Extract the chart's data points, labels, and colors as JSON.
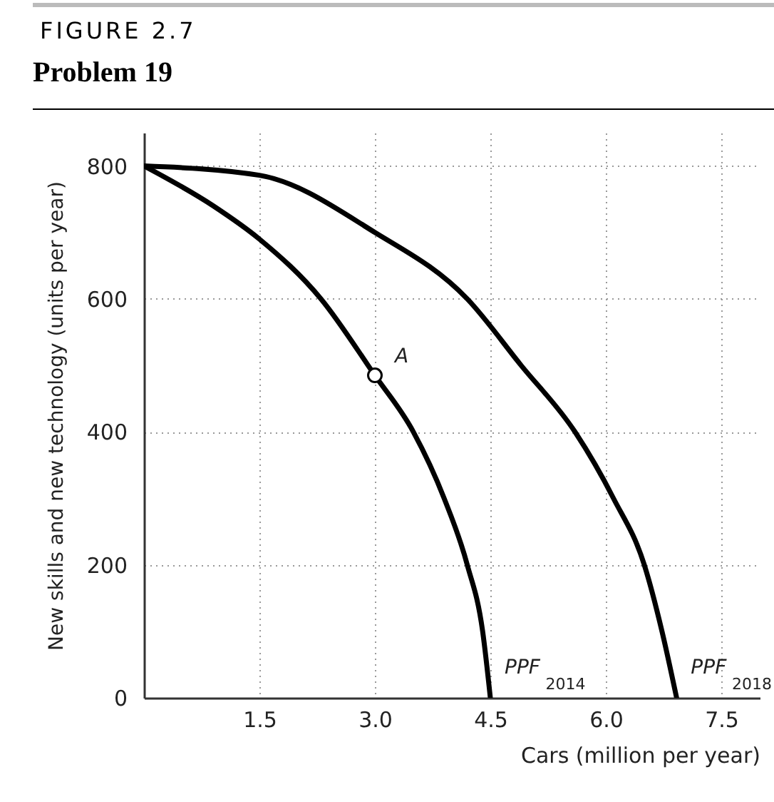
{
  "chart_data": {
    "type": "line",
    "title": "FIGURE 2.7",
    "subtitle": "Problem 19",
    "xlabel": "Cars (million per year)",
    "ylabel": "New skills and new technology (units per year)",
    "xlim": [
      0,
      8
    ],
    "ylim": [
      0,
      850
    ],
    "xticks": [
      1.5,
      {
        "value": 3,
        "label": "3.0"
      },
      4.5,
      {
        "value": 6,
        "label": "6.0"
      },
      7.5
    ],
    "yticks": [
      0,
      200,
      400,
      600,
      800
    ],
    "grid": true,
    "line_style": "solid",
    "series": [
      {
        "name": "PPF$_{2014}$",
        "color": "#000000",
        "x": [
          0,
          0.9,
          1.5,
          2.3,
          3.0,
          3.5,
          3.9,
          4.2,
          4.4,
          4.5
        ],
        "values": [
          800,
          740,
          690,
          600,
          485,
          400,
          300,
          200,
          100,
          0
        ]
      },
      {
        "name": "PPF$_{2018}$",
        "color": "#000000",
        "x": [
          0,
          1.5,
          3.0,
          4.2,
          4.9,
          5.6,
          6.1,
          6.5,
          6.73,
          6.92
        ],
        "values": [
          800,
          786,
          700,
          600,
          500,
          400,
          300,
          200,
          100,
          0
        ]
      },
      {
        "type": "scatter",
        "marker": "circle",
        "color": "#000000",
        "x": [
          3.0
        ],
        "values": [
          485
        ]
      }
    ],
    "annotations": [
      {
        "text": "A",
        "x": 3.0,
        "y": 485
      }
    ]
  }
}
